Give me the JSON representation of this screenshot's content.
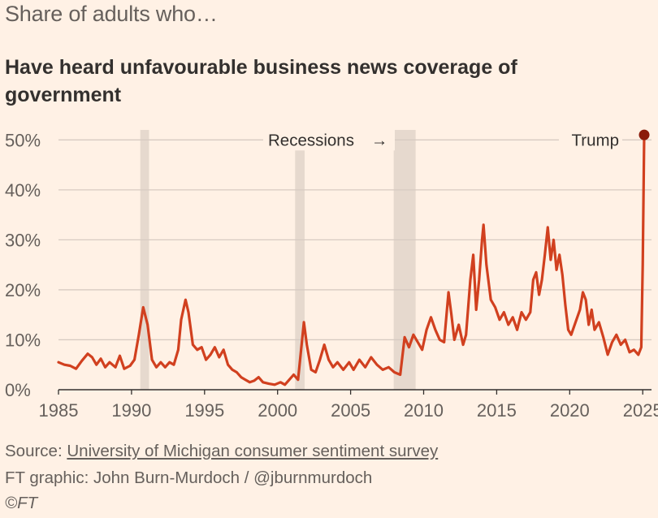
{
  "kicker": "Share of adults who…",
  "title": "Have heard unfavourable business news coverage of government",
  "footer": {
    "source_prefix": "Source: ",
    "source_link": "University of Michigan consumer sentiment survey",
    "credit": "FT graphic: John Burn-Murdoch / @jburnmurdoch",
    "copyright": "©FT"
  },
  "colors": {
    "background": "#fff1e5",
    "line": "#d1401f",
    "endpoint": "#8a1a0a",
    "recession": "#e6d9ce",
    "grid": "#d7cbc2"
  },
  "chart_data": {
    "type": "line",
    "title": "Have heard unfavourable business news coverage of government",
    "xlabel": "",
    "ylabel": "Share of adults (%)",
    "xlim": [
      1985,
      2025.6
    ],
    "ylim": [
      0,
      52
    ],
    "x_ticks": [
      1985,
      1990,
      1995,
      2000,
      2005,
      2010,
      2015,
      2020,
      2025
    ],
    "y_ticks": [
      0,
      10,
      20,
      30,
      40,
      50
    ],
    "y_tick_labels": [
      "0%",
      "10%",
      "20%",
      "30%",
      "40%",
      "50%"
    ],
    "recessions": [
      [
        1990.6,
        1991.2
      ],
      [
        2001.2,
        2001.85
      ],
      [
        2007.95,
        2009.45
      ]
    ],
    "annotations": {
      "recessions_label": "Recessions",
      "recessions_arrow": "→",
      "trump_label": "Trump"
    },
    "series": [
      {
        "name": "Have heard unfavourable business news coverage of government",
        "points": [
          [
            1985.0,
            5.5
          ],
          [
            1985.4,
            5.0
          ],
          [
            1985.8,
            4.8
          ],
          [
            1986.2,
            4.2
          ],
          [
            1986.6,
            5.8
          ],
          [
            1987.0,
            7.2
          ],
          [
            1987.3,
            6.5
          ],
          [
            1987.6,
            5.0
          ],
          [
            1987.9,
            6.2
          ],
          [
            1988.2,
            4.5
          ],
          [
            1988.5,
            5.5
          ],
          [
            1988.9,
            4.5
          ],
          [
            1989.2,
            6.8
          ],
          [
            1989.5,
            4.2
          ],
          [
            1989.9,
            4.8
          ],
          [
            1990.2,
            6.0
          ],
          [
            1990.5,
            11.0
          ],
          [
            1990.8,
            16.5
          ],
          [
            1991.1,
            13.0
          ],
          [
            1991.4,
            6.0
          ],
          [
            1991.7,
            4.5
          ],
          [
            1992.0,
            5.5
          ],
          [
            1992.3,
            4.5
          ],
          [
            1992.6,
            5.5
          ],
          [
            1992.9,
            5.0
          ],
          [
            1993.2,
            8.0
          ],
          [
            1993.4,
            14.0
          ],
          [
            1993.7,
            18.0
          ],
          [
            1993.9,
            15.5
          ],
          [
            1994.2,
            9.0
          ],
          [
            1994.5,
            8.0
          ],
          [
            1994.8,
            8.5
          ],
          [
            1995.1,
            6.0
          ],
          [
            1995.4,
            7.0
          ],
          [
            1995.7,
            8.5
          ],
          [
            1996.0,
            6.5
          ],
          [
            1996.3,
            8.0
          ],
          [
            1996.6,
            5.0
          ],
          [
            1996.9,
            4.0
          ],
          [
            1997.2,
            3.5
          ],
          [
            1997.5,
            2.5
          ],
          [
            1997.8,
            2.0
          ],
          [
            1998.1,
            1.5
          ],
          [
            1998.4,
            1.8
          ],
          [
            1998.7,
            2.5
          ],
          [
            1999.0,
            1.5
          ],
          [
            1999.4,
            1.2
          ],
          [
            1999.8,
            1.0
          ],
          [
            2000.2,
            1.5
          ],
          [
            2000.5,
            1.0
          ],
          [
            2000.8,
            2.0
          ],
          [
            2001.1,
            3.0
          ],
          [
            2001.4,
            2.0
          ],
          [
            2001.8,
            13.5
          ],
          [
            2002.0,
            9.0
          ],
          [
            2002.3,
            4.0
          ],
          [
            2002.6,
            3.5
          ],
          [
            2002.9,
            6.0
          ],
          [
            2003.2,
            9.0
          ],
          [
            2003.5,
            6.0
          ],
          [
            2003.8,
            4.5
          ],
          [
            2004.1,
            5.5
          ],
          [
            2004.5,
            4.0
          ],
          [
            2004.9,
            5.5
          ],
          [
            2005.2,
            4.0
          ],
          [
            2005.6,
            6.0
          ],
          [
            2006.0,
            4.5
          ],
          [
            2006.4,
            6.5
          ],
          [
            2006.8,
            5.0
          ],
          [
            2007.2,
            4.0
          ],
          [
            2007.6,
            4.5
          ],
          [
            2008.0,
            3.5
          ],
          [
            2008.4,
            3.0
          ],
          [
            2008.7,
            10.5
          ],
          [
            2009.0,
            8.5
          ],
          [
            2009.3,
            11.0
          ],
          [
            2009.6,
            9.5
          ],
          [
            2009.9,
            8.0
          ],
          [
            2010.2,
            12.0
          ],
          [
            2010.5,
            14.5
          ],
          [
            2010.8,
            12.0
          ],
          [
            2011.1,
            10.0
          ],
          [
            2011.4,
            9.5
          ],
          [
            2011.7,
            19.5
          ],
          [
            2011.9,
            15.0
          ],
          [
            2012.1,
            10.0
          ],
          [
            2012.4,
            13.0
          ],
          [
            2012.7,
            9.0
          ],
          [
            2012.9,
            11.0
          ],
          [
            2013.2,
            22.0
          ],
          [
            2013.4,
            27.0
          ],
          [
            2013.6,
            16.0
          ],
          [
            2013.8,
            22.0
          ],
          [
            2014.0,
            30.0
          ],
          [
            2014.1,
            33.0
          ],
          [
            2014.3,
            25.0
          ],
          [
            2014.6,
            18.0
          ],
          [
            2014.9,
            16.5
          ],
          [
            2015.2,
            14.0
          ],
          [
            2015.5,
            15.5
          ],
          [
            2015.8,
            13.0
          ],
          [
            2016.1,
            14.5
          ],
          [
            2016.4,
            12.0
          ],
          [
            2016.7,
            15.5
          ],
          [
            2017.0,
            14.0
          ],
          [
            2017.3,
            15.5
          ],
          [
            2017.5,
            22.0
          ],
          [
            2017.7,
            23.5
          ],
          [
            2017.9,
            19.0
          ],
          [
            2018.1,
            22.0
          ],
          [
            2018.3,
            27.0
          ],
          [
            2018.5,
            32.5
          ],
          [
            2018.7,
            26.0
          ],
          [
            2018.9,
            30.0
          ],
          [
            2019.1,
            24.0
          ],
          [
            2019.3,
            27.0
          ],
          [
            2019.5,
            23.0
          ],
          [
            2019.7,
            17.0
          ],
          [
            2019.9,
            12.0
          ],
          [
            2020.1,
            11.0
          ],
          [
            2020.4,
            13.5
          ],
          [
            2020.7,
            16.0
          ],
          [
            2020.9,
            19.5
          ],
          [
            2021.1,
            18.0
          ],
          [
            2021.3,
            13.0
          ],
          [
            2021.5,
            16.0
          ],
          [
            2021.7,
            12.0
          ],
          [
            2022.0,
            13.5
          ],
          [
            2022.3,
            10.5
          ],
          [
            2022.6,
            7.0
          ],
          [
            2022.9,
            9.5
          ],
          [
            2023.2,
            11.0
          ],
          [
            2023.5,
            9.0
          ],
          [
            2023.8,
            10.0
          ],
          [
            2024.1,
            7.5
          ],
          [
            2024.4,
            8.0
          ],
          [
            2024.7,
            7.0
          ],
          [
            2024.9,
            8.5
          ],
          [
            2025.0,
            25.0
          ],
          [
            2025.1,
            51.0
          ]
        ]
      }
    ]
  }
}
